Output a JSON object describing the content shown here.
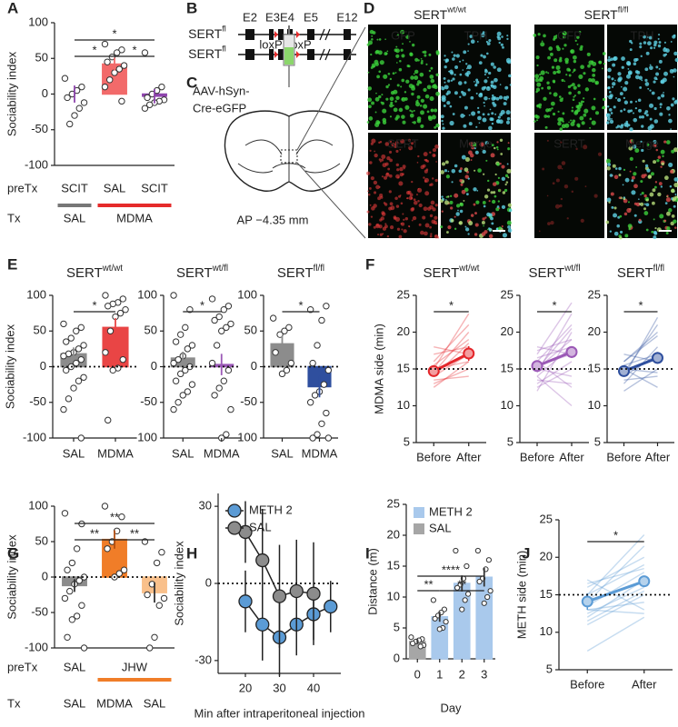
{
  "chart_data": [
    {
      "type": "bar",
      "panel": "A",
      "ylabel": "Sociability index",
      "ylim": [
        -100,
        100
      ],
      "yticks": [
        -100,
        -50,
        0,
        50,
        100
      ],
      "values": [
        0,
        42,
        -3
      ],
      "errors": [
        12,
        9,
        10
      ],
      "colors": [
        "#8e44ad",
        "#f26a6a",
        "#8e44ad"
      ],
      "points": [
        [
          22,
          10,
          5,
          0,
          -5,
          -12,
          -20,
          -30,
          -42
        ],
        [
          70,
          62,
          58,
          52,
          45,
          40,
          35,
          30,
          20,
          10,
          -10
        ],
        [
          58,
          10,
          5,
          0,
          -5,
          -8,
          -10,
          -12,
          -15,
          -20
        ]
      ],
      "row_labels": [
        {
          "name": "preTx",
          "labels": [
            "SCIT",
            "SAL",
            "SCIT"
          ]
        },
        {
          "name": "Tx",
          "labels": [
            "SAL",
            "MDMA"
          ]
        }
      ],
      "annotations": [
        "*",
        "*",
        "*"
      ]
    },
    {
      "type": "bar",
      "panel": "E",
      "title": "SERT",
      "title_sup": "wt/wt",
      "ylabel": "Sociability index",
      "ylim": [
        -100,
        100
      ],
      "yticks": [
        -100,
        -50,
        0,
        50,
        100
      ],
      "categories": [
        "SAL",
        "MDMA"
      ],
      "values": [
        18,
        55
      ],
      "errors": [
        9,
        13
      ],
      "colors": [
        "#8c8c8c",
        "#e94545"
      ],
      "points": [
        [
          60,
          55,
          50,
          40,
          35,
          30,
          25,
          20,
          18,
          15,
          10,
          5,
          0,
          -5,
          -15,
          -20,
          -30,
          -45,
          -60,
          -100
        ],
        [
          100,
          95,
          90,
          88,
          85,
          80,
          75,
          70,
          50,
          20,
          10,
          -2,
          -5,
          -75
        ]
      ],
      "reference_line": 0,
      "annotations": [
        "*"
      ]
    },
    {
      "type": "bar",
      "title": "SERT",
      "title_sup": "wt/fl",
      "ylim": [
        -100,
        100
      ],
      "yticks": [
        -100,
        -50,
        0,
        50,
        100
      ],
      "categories": [
        "SAL",
        "MDMA"
      ],
      "values": [
        12,
        3
      ],
      "errors": [
        9,
        15
      ],
      "colors": [
        "#8c8c8c",
        "#9b59b6"
      ],
      "points": [
        [
          100,
          80,
          55,
          45,
          35,
          30,
          25,
          15,
          10,
          5,
          0,
          -5,
          -10,
          -20,
          -25,
          -35,
          -40,
          -50,
          -60
        ],
        [
          95,
          85,
          80,
          70,
          65,
          60,
          55,
          50,
          30,
          5,
          -5,
          -20,
          -30,
          -40,
          -60,
          -95,
          -100
        ]
      ],
      "reference_line": 0,
      "annotations": [
        "*"
      ]
    },
    {
      "type": "bar",
      "title": "SERT",
      "title_sup": "fl/fl",
      "ylim": [
        -100,
        100
      ],
      "yticks": [
        -100,
        -50,
        0,
        50,
        100
      ],
      "categories": [
        "SAL",
        "MDMA"
      ],
      "values": [
        32,
        -28
      ],
      "errors": [
        11,
        15
      ],
      "colors": [
        "#8c8c8c",
        "#2f4f9e"
      ],
      "points": [
        [
          68,
          55,
          50,
          45,
          20,
          5,
          -5,
          -10
        ],
        [
          80,
          85,
          65,
          30,
          5,
          -5,
          -25,
          -35,
          -40,
          -50,
          -65,
          -80,
          -95,
          -100,
          -100
        ]
      ],
      "reference_line": 0,
      "annotations": [
        "*"
      ]
    },
    {
      "type": "line",
      "panel": "F",
      "title": "SERT",
      "title_sup": "wt/wt",
      "ylabel": "MDMA side (min)",
      "ylim": [
        5,
        25
      ],
      "yticks": [
        5,
        10,
        15,
        20,
        25
      ],
      "categories": [
        "Before",
        "After"
      ],
      "series": [
        {
          "color": "#e4262b",
          "values": [
            14.7,
            17.1
          ],
          "errors": [
            0.6,
            1.0
          ]
        }
      ],
      "subjects": [
        [
          12.5,
          16
        ],
        [
          13,
          15
        ],
        [
          14,
          17
        ],
        [
          14.5,
          20
        ],
        [
          15,
          16
        ],
        [
          15.5,
          19
        ],
        [
          16,
          21
        ],
        [
          17,
          18
        ],
        [
          18,
          17
        ],
        [
          13.5,
          14
        ],
        [
          15,
          22.5
        ],
        [
          14,
          18.5
        ]
      ],
      "reference_line": 15,
      "annotations": [
        "*"
      ]
    },
    {
      "type": "line",
      "title": "SERT",
      "title_sup": "wt/fl",
      "ylim": [
        5,
        25
      ],
      "yticks": [
        5,
        10,
        15,
        20,
        25
      ],
      "categories": [
        "Before",
        "After"
      ],
      "series": [
        {
          "color": "#9b59b6",
          "values": [
            15.4,
            17.3
          ],
          "errors": [
            0.5,
            0.8
          ]
        }
      ],
      "subjects": [
        [
          12,
          20
        ],
        [
          13,
          16
        ],
        [
          14,
          18
        ],
        [
          14.5,
          22.5
        ],
        [
          15,
          14
        ],
        [
          15,
          19
        ],
        [
          15.5,
          17
        ],
        [
          16,
          12.5
        ],
        [
          16,
          21
        ],
        [
          17,
          24
        ],
        [
          17.5,
          19
        ],
        [
          18,
          17
        ],
        [
          13.5,
          13
        ],
        [
          14,
          10
        ],
        [
          15,
          20.5
        ],
        [
          16.5,
          18
        ],
        [
          12.5,
          15
        ]
      ],
      "reference_line": 15,
      "annotations": [
        "*"
      ]
    },
    {
      "type": "line",
      "title": "SERT",
      "title_sup": "fl/fl",
      "ylim": [
        5,
        25
      ],
      "yticks": [
        5,
        10,
        15,
        20,
        25
      ],
      "categories": [
        "Before",
        "After"
      ],
      "series": [
        {
          "color": "#2f4f9e",
          "values": [
            14.7,
            16.5
          ],
          "errors": [
            0.6,
            0.8
          ]
        }
      ],
      "subjects": [
        [
          12,
          15
        ],
        [
          13,
          18
        ],
        [
          14,
          17
        ],
        [
          14.5,
          21
        ],
        [
          15,
          12.5
        ],
        [
          15.5,
          17
        ],
        [
          16,
          19.5
        ],
        [
          17,
          16
        ],
        [
          13.5,
          14
        ],
        [
          14,
          22
        ],
        [
          16,
          20
        ],
        [
          15,
          14.5
        ]
      ],
      "reference_line": 15,
      "annotations": [
        "*"
      ]
    },
    {
      "type": "bar",
      "panel": "G",
      "ylabel": "Sociability index",
      "ylim": [
        -100,
        100
      ],
      "yticks": [
        -100,
        -50,
        0,
        50,
        100
      ],
      "values": [
        -12,
        53,
        -22
      ],
      "errors": [
        9,
        13,
        14
      ],
      "colors": [
        "#8c8c8c",
        "#f07d28",
        "#f9c08b"
      ],
      "points": [
        [
          90,
          75,
          40,
          20,
          10,
          0,
          -5,
          -10,
          -20,
          -30,
          -40,
          -55,
          -60,
          -85,
          -100
        ],
        [
          100,
          85,
          65,
          50,
          40,
          10,
          5,
          0
        ],
        [
          50,
          35,
          20,
          -10,
          -25,
          -30,
          -40,
          -85,
          -100
        ]
      ],
      "row_labels": [
        {
          "name": "preTx",
          "labels": [
            "SAL",
            "JHW"
          ]
        },
        {
          "name": "Tx",
          "labels": [
            "SAL",
            "MDMA",
            "SAL"
          ]
        }
      ],
      "reference_line": 0,
      "annotations": [
        "**",
        "**",
        "**"
      ]
    },
    {
      "type": "line",
      "panel": "H",
      "ylabel": "Sociability index",
      "xlabel": "Min after intraperitoneal injection",
      "x": [
        20,
        25,
        30,
        35,
        40,
        45
      ],
      "xlim": [
        12,
        48
      ],
      "xticks": [
        20,
        30,
        40
      ],
      "ylim": [
        -35,
        35
      ],
      "yticks": [
        -30,
        0,
        30
      ],
      "reference_line": 0,
      "series": [
        {
          "name": "METH 2",
          "color": "#5b9bd5",
          "values": [
            -7,
            -16,
            -21,
            -16,
            -12,
            -9
          ],
          "errors": [
            12,
            14,
            15,
            12,
            10,
            10
          ]
        },
        {
          "name": "SAL",
          "color": "#8c8c8c",
          "values": [
            20,
            9,
            -5,
            -3,
            -4,
            null
          ],
          "errors": [
            12,
            20,
            20,
            20,
            20,
            null
          ]
        }
      ]
    },
    {
      "type": "bar",
      "panel": "I",
      "ylabel": "Distance (m)",
      "xlabel": "Day",
      "categories": [
        "0",
        "1",
        "2",
        "3"
      ],
      "values": [
        2.8,
        6.8,
        12.2,
        13.2
      ],
      "errors": [
        0.4,
        0.8,
        1.3,
        1.5
      ],
      "colors": [
        "#a6a6a6",
        "#a9c9ec",
        "#a9c9ec",
        "#a9c9ec"
      ],
      "points": [
        [
          3.5,
          3.2,
          3,
          2.8,
          2.5,
          2.2,
          2
        ],
        [
          9.5,
          8,
          7.5,
          7,
          6.5,
          6,
          5,
          4.8
        ],
        [
          17.5,
          15,
          13,
          12,
          11.5,
          10.5,
          9.5,
          8
        ],
        [
          17.5,
          16,
          14.5,
          13,
          12.5,
          11,
          10,
          9
        ]
      ],
      "ylim": [
        0,
        25
      ],
      "yticks": [
        0,
        5,
        10,
        15,
        20,
        25
      ],
      "legend": [
        {
          "name": "METH 2",
          "color": "#a9c9ec"
        },
        {
          "name": "SAL",
          "color": "#a6a6a6"
        }
      ],
      "annotations": [
        "**",
        "****",
        "**"
      ]
    },
    {
      "type": "line",
      "panel": "J",
      "ylabel": "METH side (min)",
      "ylim": [
        5,
        25
      ],
      "yticks": [
        5,
        10,
        15,
        20,
        25
      ],
      "categories": [
        "Before",
        "After"
      ],
      "series": [
        {
          "color": "#5b9bd5",
          "values": [
            14.1,
            16.8
          ],
          "errors": [
            1.1,
            0.7
          ]
        }
      ],
      "subjects": [
        [
          11,
          15
        ],
        [
          12,
          17
        ],
        [
          13,
          14
        ],
        [
          13.5,
          18
        ],
        [
          14,
          21.5
        ],
        [
          15,
          19
        ],
        [
          16,
          20
        ],
        [
          17,
          13
        ],
        [
          12.5,
          16
        ],
        [
          15,
          23
        ],
        [
          7.5,
          12
        ],
        [
          13,
          12.5
        ],
        [
          16.5,
          18.5
        ],
        [
          11.5,
          15.5
        ]
      ],
      "reference_line": 15,
      "annotations": [
        "*"
      ]
    }
  ],
  "panel_b": {
    "label": "B",
    "rows": [
      {
        "name": "SERT",
        "sup": "fl"
      },
      {
        "name": "SERT",
        "sup": "fl"
      }
    ],
    "exons": [
      "E2",
      "E3",
      "E4",
      "E5",
      "E12"
    ],
    "lox": [
      "loxP",
      "loxP"
    ]
  },
  "panel_c": {
    "label": "C",
    "virus": [
      "AAV-hSyn-",
      "Cre-eGFP"
    ],
    "coordinate": "AP −4.35 mm"
  },
  "panel_d": {
    "label": "D",
    "groups": [
      {
        "name": "SERT",
        "sup": "wt/wt"
      },
      {
        "name": "SERT",
        "sup": "fl/fl"
      }
    ],
    "channels": [
      "GFP",
      "TPH",
      "SERT",
      "Merge"
    ]
  }
}
